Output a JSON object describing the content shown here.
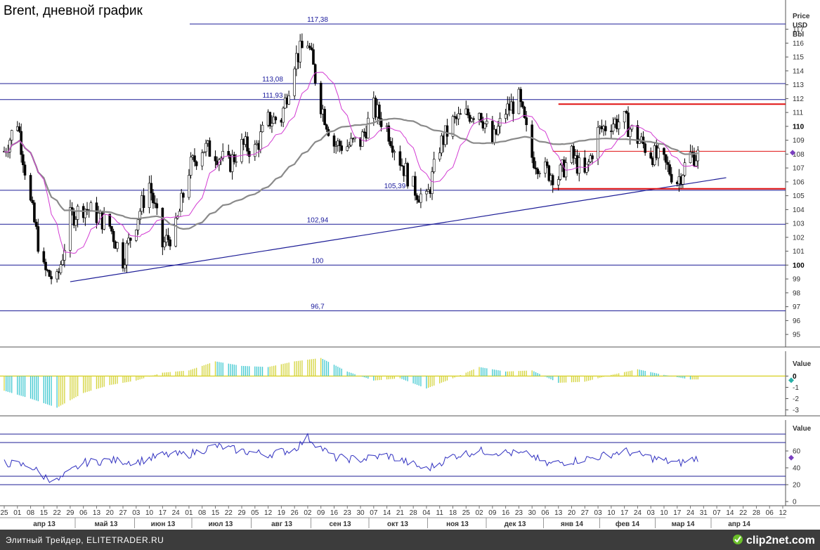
{
  "title": "Brent, дневной график",
  "footer": {
    "left": "Элитный Трейдер, ELITETRADER.RU",
    "logo": "clip2net.com"
  },
  "colors": {
    "price_up": "#ffffff",
    "price_down": "#000000",
    "ma_short": "#d23ad2",
    "ma_long": "#8a8a8a",
    "levels": "#1c1c96",
    "channel": "#e01010",
    "osc_pos": "#d4d43a",
    "osc_neg": "#3ec8d0",
    "rsi": "#3030c0"
  },
  "chart_data": [
    {
      "type": "candlestick",
      "title": "Brent, дневной график",
      "ylabel": "Price USD Bbl",
      "ylim": [
        94.5,
        118.5
      ],
      "yticks": [
        95,
        96,
        97,
        98,
        99,
        100,
        101,
        102,
        103,
        104,
        105,
        106,
        107,
        108,
        109,
        110,
        111,
        112,
        113,
        114,
        115,
        116,
        117
      ],
      "ytick_labels": [
        "95",
        "96",
        "97",
        "98",
        "99",
        "100",
        "101",
        "102",
        "103",
        "104",
        "105",
        "106",
        "107",
        "108",
        "109",
        "110",
        "111",
        "112",
        "113",
        "114",
        "115",
        "116",
        "117"
      ],
      "bold_ticks": [
        100,
        110
      ],
      "levels": [
        {
          "value": 117.38,
          "label": "117,38"
        },
        {
          "value": 113.08,
          "label": "113,08"
        },
        {
          "value": 111.93,
          "label": "111,93"
        },
        {
          "value": 105.39,
          "label": "105,39"
        },
        {
          "value": 102.94,
          "label": "102,94"
        },
        {
          "value": 100,
          "label": "100"
        },
        {
          "value": 96.7,
          "label": "96,7"
        }
      ],
      "channel_lines": [
        {
          "from": "2014-01-13",
          "to": "2014-03-31",
          "value": 111.6
        },
        {
          "from": "2014-01-10",
          "to": "2014-03-31",
          "value": 108.2
        },
        {
          "from": "2014-01-10",
          "to": "2014-03-31",
          "value": 105.5
        }
      ],
      "trendline": {
        "from": [
          "2013-04-29",
          98.8
        ],
        "to": [
          "2014-04-12",
          106.3
        ]
      },
      "closes": [
        {
          "date": "2013-03-25",
          "close": 108.2
        },
        {
          "date": "2013-04-01",
          "close": 110.4
        },
        {
          "date": "2013-04-08",
          "close": 104.4
        },
        {
          "date": "2013-04-15",
          "close": 99.6
        },
        {
          "date": "2013-04-22",
          "close": 98.8
        },
        {
          "date": "2013-04-29",
          "close": 103.4
        },
        {
          "date": "2013-05-06",
          "close": 104.2
        },
        {
          "date": "2013-05-13",
          "close": 103.6
        },
        {
          "date": "2013-05-20",
          "close": 102.8
        },
        {
          "date": "2013-05-27",
          "close": 100.4
        },
        {
          "date": "2013-06-03",
          "close": 103.2
        },
        {
          "date": "2013-06-10",
          "close": 105.9
        },
        {
          "date": "2013-06-17",
          "close": 101.4
        },
        {
          "date": "2013-06-24",
          "close": 102.6
        },
        {
          "date": "2013-07-01",
          "close": 106.9
        },
        {
          "date": "2013-07-08",
          "close": 108.5
        },
        {
          "date": "2013-07-15",
          "close": 108.1
        },
        {
          "date": "2013-07-22",
          "close": 107.2
        },
        {
          "date": "2013-07-29",
          "close": 108.6
        },
        {
          "date": "2013-08-05",
          "close": 108.3
        },
        {
          "date": "2013-08-12",
          "close": 110.4
        },
        {
          "date": "2013-08-19",
          "close": 110.6
        },
        {
          "date": "2013-08-26",
          "close": 114.8
        },
        {
          "date": "2013-09-02",
          "close": 116.1
        },
        {
          "date": "2013-09-09",
          "close": 111.6
        },
        {
          "date": "2013-09-16",
          "close": 108.7
        },
        {
          "date": "2013-09-23",
          "close": 108.6
        },
        {
          "date": "2013-09-30",
          "close": 108.9
        },
        {
          "date": "2013-10-07",
          "close": 111.3
        },
        {
          "date": "2013-10-14",
          "close": 109.9
        },
        {
          "date": "2013-10-21",
          "close": 107.6
        },
        {
          "date": "2013-10-28",
          "close": 105.6
        },
        {
          "date": "2013-11-04",
          "close": 104.6
        },
        {
          "date": "2013-11-11",
          "close": 108.6
        },
        {
          "date": "2013-11-18",
          "close": 110.3
        },
        {
          "date": "2013-11-25",
          "close": 110.8
        },
        {
          "date": "2013-12-02",
          "close": 111.2
        },
        {
          "date": "2013-12-09",
          "close": 108.8
        },
        {
          "date": "2013-12-16",
          "close": 111.1
        },
        {
          "date": "2013-12-23",
          "close": 111.9
        },
        {
          "date": "2013-12-30",
          "close": 107.8
        },
        {
          "date": "2014-01-06",
          "close": 106.8
        },
        {
          "date": "2014-01-13",
          "close": 106.4
        },
        {
          "date": "2014-01-20",
          "close": 107.9
        },
        {
          "date": "2014-01-27",
          "close": 106.4
        },
        {
          "date": "2014-02-03",
          "close": 109.6
        },
        {
          "date": "2014-02-10",
          "close": 110.3
        },
        {
          "date": "2014-02-17",
          "close": 110.4
        },
        {
          "date": "2014-02-24",
          "close": 109.1
        },
        {
          "date": "2014-03-03",
          "close": 108.1
        },
        {
          "date": "2014-03-10",
          "close": 107.3
        },
        {
          "date": "2014-03-17",
          "close": 106.1
        },
        {
          "date": "2014-03-24",
          "close": 107.9
        }
      ],
      "series": [
        {
          "name": "MA short",
          "kind": "line"
        },
        {
          "name": "MA long",
          "kind": "line"
        }
      ]
    },
    {
      "type": "bar",
      "ylabel": "Value",
      "ylim": [
        -3.4,
        2.2
      ],
      "yticks": [
        0,
        -1,
        -2,
        -3
      ],
      "ytick_labels": [
        "0",
        "-1",
        "-2",
        "-3"
      ],
      "last_value": 0,
      "weekly_values": [
        {
          "date": "2013-03-25",
          "value": -1.3
        },
        {
          "date": "2013-04-08",
          "value": -2.0
        },
        {
          "date": "2013-04-22",
          "value": -2.8
        },
        {
          "date": "2013-05-06",
          "value": -1.5
        },
        {
          "date": "2013-05-20",
          "value": -0.8
        },
        {
          "date": "2013-06-03",
          "value": -0.4
        },
        {
          "date": "2013-06-17",
          "value": 0.3
        },
        {
          "date": "2013-07-01",
          "value": 0.5
        },
        {
          "date": "2013-07-15",
          "value": 1.3
        },
        {
          "date": "2013-07-29",
          "value": 0.9
        },
        {
          "date": "2013-08-12",
          "value": 0.8
        },
        {
          "date": "2013-08-26",
          "value": 1.3
        },
        {
          "date": "2013-09-09",
          "value": 1.6
        },
        {
          "date": "2013-09-23",
          "value": 0.4
        },
        {
          "date": "2013-10-07",
          "value": -0.4
        },
        {
          "date": "2013-10-21",
          "value": -0.2
        },
        {
          "date": "2013-11-04",
          "value": -1.1
        },
        {
          "date": "2013-11-18",
          "value": -0.2
        },
        {
          "date": "2013-12-02",
          "value": 0.8
        },
        {
          "date": "2013-12-16",
          "value": 0.4
        },
        {
          "date": "2013-12-30",
          "value": 0.5
        },
        {
          "date": "2014-01-13",
          "value": -0.6
        },
        {
          "date": "2014-01-27",
          "value": -0.5
        },
        {
          "date": "2014-02-10",
          "value": 0.1
        },
        {
          "date": "2014-02-24",
          "value": 0.6
        },
        {
          "date": "2014-03-10",
          "value": 0.1
        },
        {
          "date": "2014-03-24",
          "value": -0.3
        }
      ]
    },
    {
      "type": "line",
      "ylabel": "Value",
      "ylim": [
        -5,
        95
      ],
      "yticks": [
        0,
        20,
        40,
        60
      ],
      "ytick_labels": [
        "0",
        "20",
        "40",
        "60"
      ],
      "reference_lines": [
        20,
        30,
        70,
        80
      ],
      "series": [
        {
          "name": "RSI",
          "values": [
            {
              "date": "2013-03-25",
              "value": 46
            },
            {
              "date": "2013-04-08",
              "value": 42
            },
            {
              "date": "2013-04-15",
              "value": 30
            },
            {
              "date": "2013-04-22",
              "value": 24
            },
            {
              "date": "2013-05-06",
              "value": 46
            },
            {
              "date": "2013-05-20",
              "value": 49
            },
            {
              "date": "2013-06-03",
              "value": 47
            },
            {
              "date": "2013-06-17",
              "value": 55
            },
            {
              "date": "2013-07-01",
              "value": 56
            },
            {
              "date": "2013-07-15",
              "value": 66
            },
            {
              "date": "2013-07-29",
              "value": 60
            },
            {
              "date": "2013-08-12",
              "value": 56
            },
            {
              "date": "2013-08-26",
              "value": 62
            },
            {
              "date": "2013-09-02",
              "value": 76
            },
            {
              "date": "2013-09-16",
              "value": 52
            },
            {
              "date": "2013-09-30",
              "value": 50
            },
            {
              "date": "2013-10-14",
              "value": 55
            },
            {
              "date": "2013-10-28",
              "value": 44
            },
            {
              "date": "2013-11-04",
              "value": 38
            },
            {
              "date": "2013-11-18",
              "value": 54
            },
            {
              "date": "2013-12-02",
              "value": 60
            },
            {
              "date": "2013-12-16",
              "value": 58
            },
            {
              "date": "2013-12-30",
              "value": 55
            },
            {
              "date": "2014-01-06",
              "value": 44
            },
            {
              "date": "2014-01-20",
              "value": 48
            },
            {
              "date": "2014-02-03",
              "value": 53
            },
            {
              "date": "2014-02-17",
              "value": 60
            },
            {
              "date": "2014-03-03",
              "value": 52
            },
            {
              "date": "2014-03-17",
              "value": 45
            },
            {
              "date": "2014-03-28",
              "value": 52
            }
          ]
        }
      ]
    }
  ],
  "x_axis": {
    "start": "2013-03-25",
    "end": "2014-05-12",
    "day_labels": [
      "25",
      "01",
      "08",
      "15",
      "22",
      "29",
      "06",
      "13",
      "20",
      "27",
      "03",
      "10",
      "17",
      "24",
      "01",
      "08",
      "15",
      "22",
      "29",
      "05",
      "12",
      "19",
      "26",
      "02",
      "09",
      "16",
      "23",
      "30",
      "07",
      "14",
      "21",
      "28",
      "04",
      "11",
      "18",
      "25",
      "02",
      "09",
      "16",
      "23",
      "30",
      "06",
      "13",
      "20",
      "27",
      "03",
      "10",
      "17",
      "24",
      "03",
      "10",
      "17",
      "24",
      "31",
      "07",
      "14",
      "22",
      "28",
      "06",
      "12"
    ],
    "months": [
      "апр 13",
      "май 13",
      "июн 13",
      "июл 13",
      "авг 13",
      "сен 13",
      "окт 13",
      "ноя 13",
      "дек 13",
      "янв 14",
      "фев 14",
      "мар 14",
      "апр 14"
    ]
  },
  "axis_heads": {
    "price": [
      "Price",
      "USD",
      "Bbl"
    ],
    "osc": "Value",
    "rsi": "Value"
  }
}
